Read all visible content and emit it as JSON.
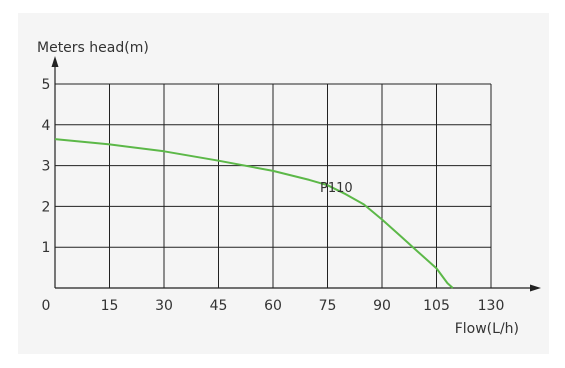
{
  "chart_data": {
    "type": "line",
    "xlabel": "Flow(L/h)",
    "ylabel": "Meters head(m)",
    "x_ticks": [
      "0",
      "15",
      "30",
      "45",
      "60",
      "75",
      "90",
      "105",
      "130"
    ],
    "y_ticks": [
      "1",
      "2",
      "3",
      "4",
      "5"
    ],
    "xlim": [
      0,
      130
    ],
    "ylim": [
      0,
      5
    ],
    "grid": true,
    "series": [
      {
        "name": "P110",
        "color": "#5cb848",
        "x": [
          0,
          15,
          30,
          45,
          60,
          70,
          75,
          80,
          85,
          90,
          95,
          100,
          105,
          110,
          112.5
        ],
        "y": [
          3.65,
          3.52,
          3.35,
          3.12,
          2.87,
          2.65,
          2.52,
          2.3,
          2.05,
          1.68,
          1.28,
          0.88,
          0.48,
          0.12,
          0
        ]
      }
    ],
    "annotations": [
      {
        "text": "P110",
        "x": 70,
        "y": 2.2
      }
    ]
  }
}
